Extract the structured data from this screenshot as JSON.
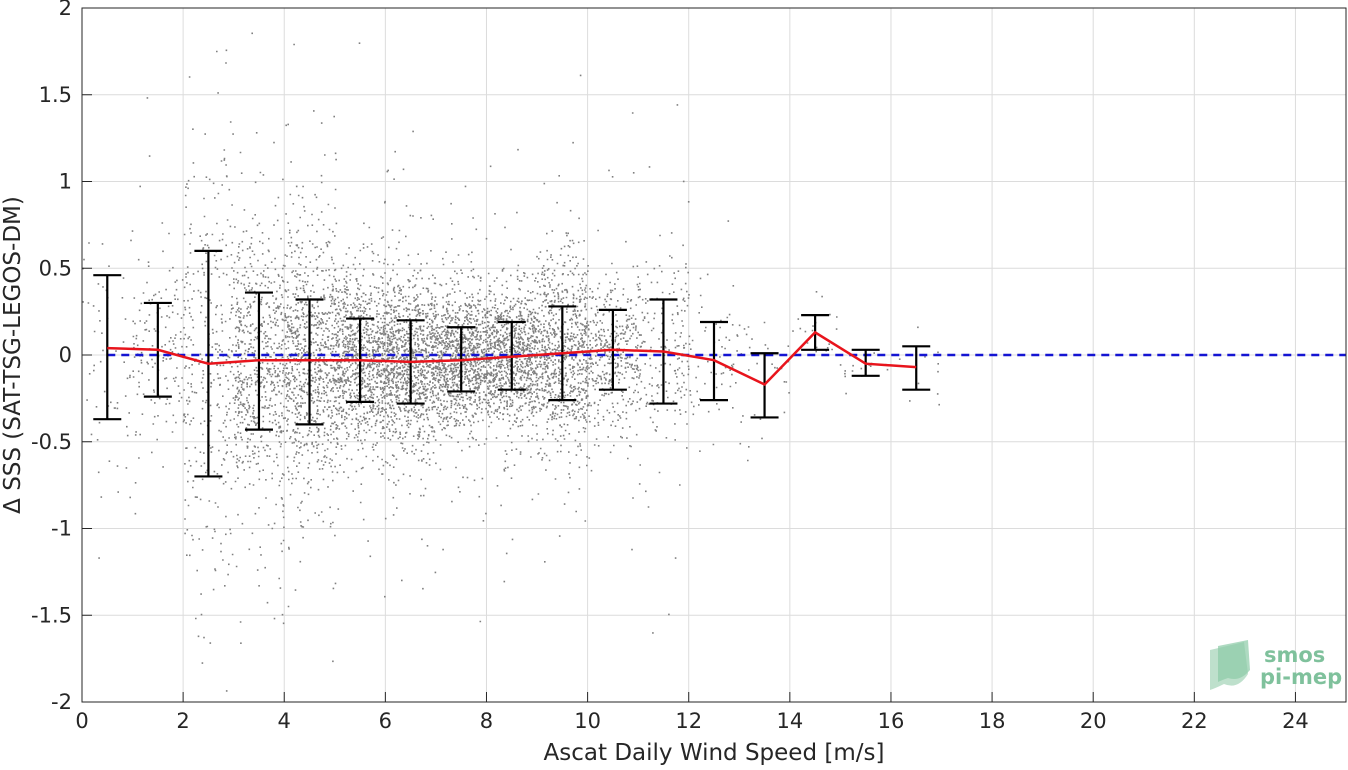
{
  "chart_data": {
    "type": "scatter",
    "xlabel": "Ascat Daily Wind Speed [m/s]",
    "ylabel": "Δ SSS (SAT-TSG-LEGOS-DM)",
    "xlim": [
      0,
      25
    ],
    "ylim": [
      -2,
      2
    ],
    "xticks": [
      "0",
      "2",
      "4",
      "6",
      "8",
      "10",
      "12",
      "14",
      "16",
      "18",
      "20",
      "22",
      "24"
    ],
    "yticks": [
      "2",
      "1.5",
      "1",
      "0.5",
      "0",
      "-0.5",
      "-1",
      "-1.5",
      "-2"
    ],
    "grid": true,
    "colors": {
      "scatter": "#808080",
      "mean_line": "#e8141c",
      "error_bars": "#000000",
      "zero_line": "#1414d2"
    },
    "zero_line": {
      "y": 0,
      "style": "dashed"
    },
    "binned_stats": {
      "x": [
        0.5,
        1.5,
        2.5,
        3.5,
        4.5,
        5.5,
        6.5,
        7.5,
        8.5,
        9.5,
        10.5,
        11.5,
        12.5,
        13.5,
        14.5,
        15.5,
        16.5
      ],
      "mean": [
        0.04,
        0.03,
        -0.05,
        -0.03,
        -0.03,
        -0.03,
        -0.04,
        -0.03,
        -0.01,
        0.01,
        0.03,
        0.02,
        -0.03,
        -0.17,
        0.13,
        -0.05,
        -0.07
      ],
      "upper": [
        0.46,
        0.3,
        0.6,
        0.36,
        0.32,
        0.21,
        0.2,
        0.16,
        0.19,
        0.28,
        0.26,
        0.32,
        0.19,
        0.01,
        0.23,
        0.03,
        0.05
      ],
      "lower": [
        -0.37,
        -0.24,
        -0.7,
        -0.43,
        -0.4,
        -0.27,
        -0.28,
        -0.21,
        -0.2,
        -0.26,
        -0.2,
        -0.28,
        -0.26,
        -0.36,
        0.03,
        -0.12,
        -0.2
      ]
    },
    "scatter_density": {
      "x_range": [
        0.2,
        16.6
      ],
      "description_points_per_bin": [
        60,
        150,
        350,
        650,
        850,
        1000,
        1050,
        1000,
        950,
        800,
        400,
        200,
        60,
        30,
        20,
        15,
        10
      ]
    }
  },
  "logo": {
    "line1": "smos",
    "line2": "pi-mep"
  }
}
